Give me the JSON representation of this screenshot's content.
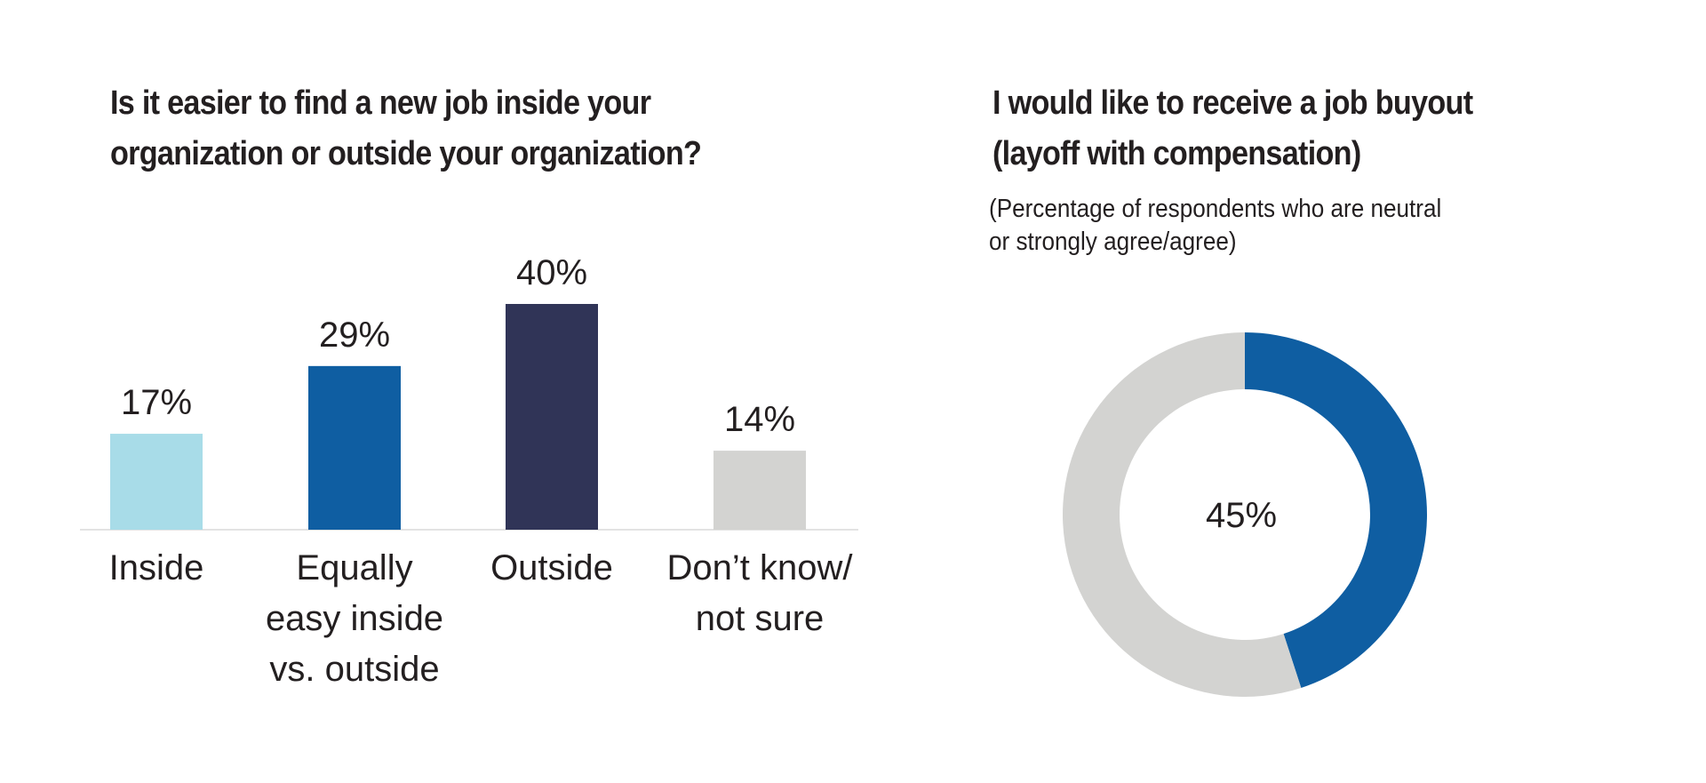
{
  "charts": {
    "left_title_line1": "Is it easier to find a new job inside your",
    "left_title_line2": "organization or outside your organization?",
    "right_title_line1": "I would like to receive a job buyout",
    "right_title_line2": "(layoff with compensation)",
    "right_subtitle_line1": "(Percentage of respondents who are neutral",
    "right_subtitle_line2": "or strongly agree/agree)"
  },
  "chart_data": [
    {
      "type": "bar",
      "title": "Is it easier to find a new job inside your organization or outside your organization?",
      "categories": [
        [
          "Inside"
        ],
        [
          "Equally",
          "easy inside",
          "vs. outside"
        ],
        [
          "Outside"
        ],
        [
          "Don’t know/",
          "not sure"
        ]
      ],
      "values": [
        17,
        29,
        40,
        14
      ],
      "value_labels": [
        "17%",
        "29%",
        "40%",
        "14%"
      ],
      "colors": [
        "#a8dce8",
        "#0f5ea2",
        "#303457",
        "#d3d3d1"
      ],
      "ylim": [
        0,
        40
      ],
      "grid": false,
      "legend": "none"
    },
    {
      "type": "pie",
      "variant": "donut",
      "title": "I would like to receive a job buyout (layoff with compensation)",
      "subtitle": "(Percentage of respondents who are neutral or strongly agree/agree)",
      "values": [
        45,
        55
      ],
      "center_label": "45%",
      "colors": [
        "#0f5ea2",
        "#d3d3d1"
      ],
      "legend": "none"
    }
  ]
}
